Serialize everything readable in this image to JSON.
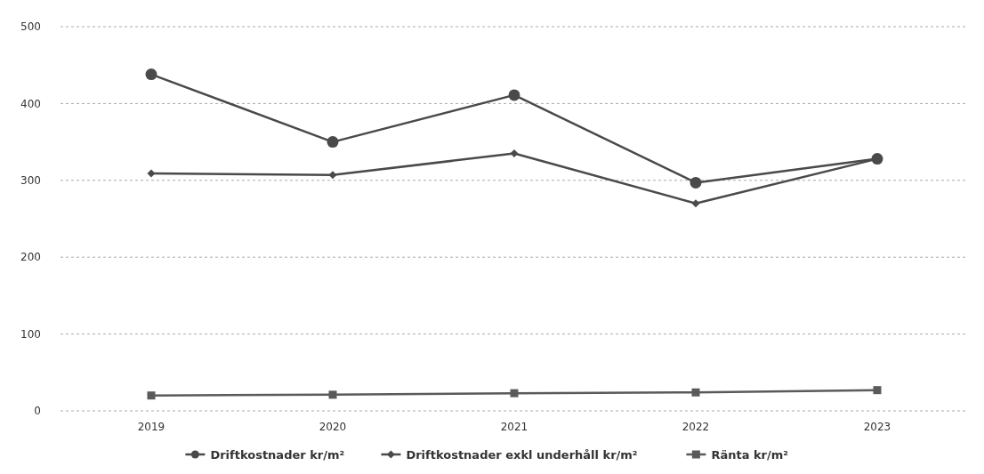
{
  "chart_data": {
    "type": "line",
    "categories": [
      "2019",
      "2020",
      "2021",
      "2022",
      "2023"
    ],
    "series": [
      {
        "name": "Driftkostnader kr/m²",
        "color": "#4a4a4a",
        "marker": "circle",
        "values": [
          438,
          350,
          411,
          297,
          328
        ]
      },
      {
        "name": "Driftkostnader exkl underhåll kr/m²",
        "color": "#4a4a4a",
        "marker": "diamond",
        "values": [
          309,
          307,
          335,
          270,
          328
        ]
      },
      {
        "name": "Ränta kr/m²",
        "color": "#5a5a5a",
        "marker": "square",
        "values": [
          20,
          21,
          23,
          24,
          27
        ]
      }
    ],
    "ylim": [
      0,
      500
    ],
    "yticks": [
      0,
      100,
      200,
      300,
      400,
      500
    ],
    "grid": "y",
    "legend": "bottom",
    "line_style": "solid"
  }
}
